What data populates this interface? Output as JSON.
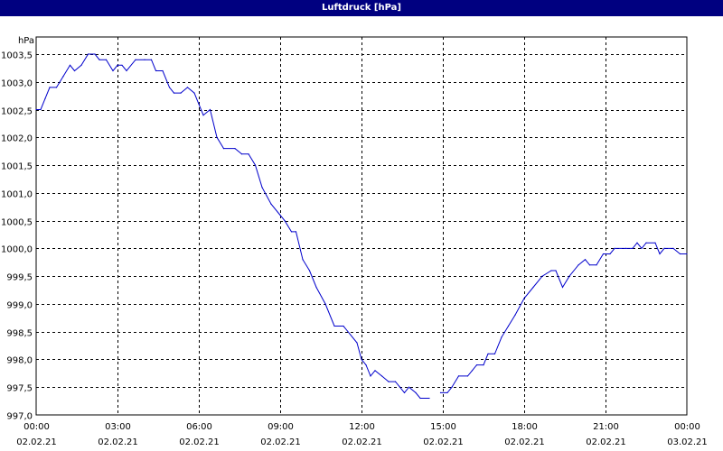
{
  "window": {
    "title": "Luftdruck [hPa]"
  },
  "chart_data": {
    "type": "line",
    "title": "Luftdruck [hPa]",
    "ylabel": "hPa",
    "xlabel": "",
    "ylim": [
      997.0,
      1003.5
    ],
    "yticks": [
      "1003,5",
      "1003,0",
      "1002,5",
      "1002,0",
      "1001,5",
      "1001,0",
      "1000,5",
      "1000,0",
      "999,5",
      "999,0",
      "998,5",
      "998,0",
      "997,5",
      "997,0"
    ],
    "xticks": [
      {
        "time": "00:00",
        "date": "02.02.21"
      },
      {
        "time": "03:00",
        "date": "02.02.21"
      },
      {
        "time": "06:00",
        "date": "02.02.21"
      },
      {
        "time": "09:00",
        "date": "02.02.21"
      },
      {
        "time": "12:00",
        "date": "02.02.21"
      },
      {
        "time": "15:00",
        "date": "02.02.21"
      },
      {
        "time": "18:00",
        "date": "02.02.21"
      },
      {
        "time": "21:00",
        "date": "02.02.21"
      },
      {
        "time": "00:00",
        "date": "03.02.21"
      }
    ],
    "grid": true,
    "line_color": "#0000cc",
    "series": [
      {
        "segments": [
          [
            [
              "02.02.21 00:00",
              1002.5
            ],
            [
              "02.02.21 00:10",
              1002.5
            ],
            [
              "02.02.21 00:20",
              1002.7
            ],
            [
              "02.02.21 00:30",
              1002.9
            ],
            [
              "02.02.21 00:45",
              1002.9
            ],
            [
              "02.02.21 01:00",
              1003.1
            ],
            [
              "02.02.21 01:15",
              1003.3
            ],
            [
              "02.02.21 01:25",
              1003.2
            ],
            [
              "02.02.21 01:40",
              1003.3
            ],
            [
              "02.02.21 01:55",
              1003.5
            ],
            [
              "02.02.21 02:10",
              1003.5
            ],
            [
              "02.02.21 02:20",
              1003.4
            ],
            [
              "02.02.21 02:35",
              1003.4
            ],
            [
              "02.02.21 02:50",
              1003.2
            ],
            [
              "02.02.21 03:00",
              1003.3
            ],
            [
              "02.02.21 03:10",
              1003.3
            ],
            [
              "02.02.21 03:20",
              1003.2
            ],
            [
              "02.02.21 03:40",
              1003.4
            ],
            [
              "02.02.21 04:00",
              1003.4
            ],
            [
              "02.02.21 04:15",
              1003.4
            ],
            [
              "02.02.21 04:25",
              1003.2
            ],
            [
              "02.02.21 04:40",
              1003.2
            ],
            [
              "02.02.21 04:55",
              1002.9
            ],
            [
              "02.02.21 05:05",
              1002.8
            ],
            [
              "02.02.21 05:20",
              1002.8
            ],
            [
              "02.02.21 05:35",
              1002.9
            ],
            [
              "02.02.21 05:50",
              1002.8
            ],
            [
              "02.02.21 06:00",
              1002.6
            ],
            [
              "02.02.21 06:10",
              1002.4
            ],
            [
              "02.02.21 06:25",
              1002.5
            ],
            [
              "02.02.21 06:40",
              1002.0
            ],
            [
              "02.02.21 06:55",
              1001.8
            ],
            [
              "02.02.21 07:20",
              1001.8
            ],
            [
              "02.02.21 07:35",
              1001.7
            ],
            [
              "02.02.21 07:50",
              1001.7
            ],
            [
              "02.02.21 08:05",
              1001.5
            ],
            [
              "02.02.21 08:20",
              1001.1
            ],
            [
              "02.02.21 08:40",
              1000.8
            ],
            [
              "02.02.21 09:00",
              1000.6
            ],
            [
              "02.02.21 09:10",
              1000.5
            ],
            [
              "02.02.21 09:25",
              1000.3
            ],
            [
              "02.02.21 09:35",
              1000.3
            ],
            [
              "02.02.21 09:50",
              999.8
            ],
            [
              "02.02.21 10:05",
              999.6
            ],
            [
              "02.02.21 10:20",
              999.3
            ],
            [
              "02.02.21 10:40",
              999.0
            ],
            [
              "02.02.21 11:00",
              998.6
            ],
            [
              "02.02.21 11:20",
              998.6
            ],
            [
              "02.02.21 11:50",
              998.3
            ],
            [
              "02.02.21 12:00",
              998.0
            ],
            [
              "02.02.21 12:10",
              997.9
            ],
            [
              "02.02.21 12:20",
              997.7
            ],
            [
              "02.02.21 12:30",
              997.8
            ],
            [
              "02.02.21 12:45",
              997.7
            ],
            [
              "02.02.21 13:00",
              997.6
            ],
            [
              "02.02.21 13:15",
              997.6
            ],
            [
              "02.02.21 13:25",
              997.5
            ],
            [
              "02.02.21 13:35",
              997.4
            ],
            [
              "02.02.21 13:45",
              997.5
            ],
            [
              "02.02.21 14:00",
              997.4
            ],
            [
              "02.02.21 14:10",
              997.3
            ],
            [
              "02.02.21 14:30",
              997.3
            ]
          ],
          [
            [
              "02.02.21 14:55",
              997.4
            ],
            [
              "02.02.21 15:10",
              997.4
            ],
            [
              "02.02.21 15:20",
              997.5
            ],
            [
              "02.02.21 15:35",
              997.7
            ],
            [
              "02.02.21 15:55",
              997.7
            ],
            [
              "02.02.21 16:05",
              997.8
            ],
            [
              "02.02.21 16:15",
              997.9
            ],
            [
              "02.02.21 16:30",
              997.9
            ],
            [
              "02.02.21 16:40",
              998.1
            ],
            [
              "02.02.21 16:55",
              998.1
            ],
            [
              "02.02.21 17:10",
              998.4
            ],
            [
              "02.02.21 17:25",
              998.6
            ],
            [
              "02.02.21 17:40",
              998.8
            ],
            [
              "02.02.21 18:00",
              999.1
            ],
            [
              "02.02.21 18:20",
              999.3
            ],
            [
              "02.02.21 18:40",
              999.5
            ],
            [
              "02.02.21 19:00",
              999.6
            ],
            [
              "02.02.21 19:10",
              999.6
            ],
            [
              "02.02.21 19:25",
              999.3
            ],
            [
              "02.02.21 19:40",
              999.5
            ],
            [
              "02.02.21 20:00",
              999.7
            ],
            [
              "02.02.21 20:15",
              999.8
            ],
            [
              "02.02.21 20:25",
              999.7
            ],
            [
              "02.02.21 20:40",
              999.7
            ],
            [
              "02.02.21 20:55",
              999.9
            ],
            [
              "02.02.21 21:10",
              999.9
            ],
            [
              "02.02.21 21:20",
              1000.0
            ],
            [
              "02.02.21 21:45",
              1000.0
            ],
            [
              "02.02.21 22:00",
              1000.0
            ],
            [
              "02.02.21 22:10",
              1000.1
            ],
            [
              "02.02.21 22:20",
              1000.0
            ],
            [
              "02.02.21 22:30",
              1000.1
            ],
            [
              "02.02.21 22:50",
              1000.1
            ],
            [
              "02.02.21 23:00",
              999.9
            ],
            [
              "02.02.21 23:10",
              1000.0
            ],
            [
              "02.02.21 23:30",
              1000.0
            ],
            [
              "02.02.21 23:45",
              999.9
            ],
            [
              "03.02.21 00:00",
              999.9
            ]
          ]
        ]
      }
    ]
  }
}
